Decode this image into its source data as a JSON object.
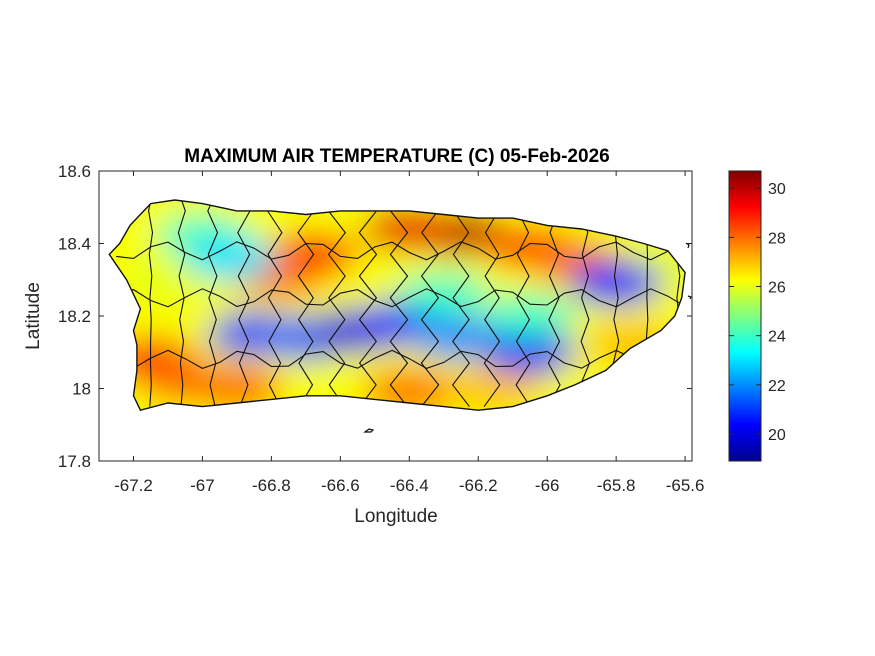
{
  "chart_data": {
    "type": "heatmap",
    "title": "MAXIMUM AIR TEMPERATURE (C) 05-Feb-2026",
    "xlabel": "Longitude",
    "ylabel": "Latitude",
    "xlim": [
      -67.3,
      -65.58
    ],
    "ylim": [
      17.8,
      18.6
    ],
    "xticks": [
      -67.2,
      -67,
      -66.8,
      -66.6,
      -66.4,
      -66.2,
      -66,
      -65.8,
      -65.6
    ],
    "xtick_labels": [
      "-67.2",
      "-67",
      "-66.8",
      "-66.6",
      "-66.4",
      "-66.2",
      "-66",
      "-65.8",
      "-65.6"
    ],
    "yticks": [
      17.8,
      18,
      18.2,
      18.4,
      18.6
    ],
    "ytick_labels": [
      "17.8",
      "18",
      "18.2",
      "18.4",
      "18.6"
    ],
    "colorbar": {
      "range": [
        18.9,
        30.7
      ],
      "ticks": [
        20,
        22,
        24,
        26,
        28,
        30
      ],
      "tick_labels": [
        "20",
        "22",
        "24",
        "26",
        "28",
        "30"
      ],
      "colormap": "jet"
    },
    "grid": false,
    "island_outline": [
      [
        -67.27,
        18.37
      ],
      [
        -67.24,
        18.4
      ],
      [
        -67.21,
        18.45
      ],
      [
        -67.17,
        18.49
      ],
      [
        -67.15,
        18.51
      ],
      [
        -67.08,
        18.52
      ],
      [
        -67.0,
        18.51
      ],
      [
        -66.9,
        18.49
      ],
      [
        -66.8,
        18.49
      ],
      [
        -66.7,
        18.48
      ],
      [
        -66.6,
        18.49
      ],
      [
        -66.5,
        18.49
      ],
      [
        -66.4,
        18.49
      ],
      [
        -66.3,
        18.48
      ],
      [
        -66.2,
        18.47
      ],
      [
        -66.1,
        18.47
      ],
      [
        -66.0,
        18.45
      ],
      [
        -65.9,
        18.44
      ],
      [
        -65.8,
        18.42
      ],
      [
        -65.72,
        18.4
      ],
      [
        -65.65,
        18.38
      ],
      [
        -65.6,
        18.32
      ],
      [
        -65.61,
        18.25
      ],
      [
        -65.63,
        18.2
      ],
      [
        -65.67,
        18.16
      ],
      [
        -65.76,
        18.11
      ],
      [
        -65.83,
        18.05
      ],
      [
        -65.92,
        18.01
      ],
      [
        -66.0,
        17.98
      ],
      [
        -66.1,
        17.95
      ],
      [
        -66.2,
        17.94
      ],
      [
        -66.3,
        17.95
      ],
      [
        -66.4,
        17.96
      ],
      [
        -66.5,
        17.97
      ],
      [
        -66.6,
        17.98
      ],
      [
        -66.7,
        17.98
      ],
      [
        -66.8,
        17.97
      ],
      [
        -66.9,
        17.96
      ],
      [
        -67.0,
        17.95
      ],
      [
        -67.1,
        17.96
      ],
      [
        -67.18,
        17.94
      ],
      [
        -67.2,
        17.98
      ],
      [
        -67.19,
        18.05
      ],
      [
        -67.19,
        18.12
      ],
      [
        -67.2,
        18.16
      ],
      [
        -67.18,
        18.22
      ],
      [
        -67.22,
        18.3
      ],
      [
        -67.27,
        18.37
      ]
    ],
    "temperature_centers": [
      {
        "lon": -66.25,
        "lat": 18.43,
        "value": 30
      },
      {
        "lon": -66.4,
        "lat": 18.44,
        "value": 29.5
      },
      {
        "lon": -66.05,
        "lat": 18.39,
        "value": 28.5
      },
      {
        "lon": -65.92,
        "lat": 18.35,
        "value": 28
      },
      {
        "lon": -66.68,
        "lat": 18.37,
        "value": 29
      },
      {
        "lon": -66.78,
        "lat": 18.31,
        "value": 28
      },
      {
        "lon": -67.15,
        "lat": 18.08,
        "value": 29
      },
      {
        "lon": -67.05,
        "lat": 18.02,
        "value": 28
      },
      {
        "lon": -66.9,
        "lat": 18.0,
        "value": 28
      },
      {
        "lon": -66.4,
        "lat": 17.99,
        "value": 28
      },
      {
        "lon": -66.15,
        "lat": 18.0,
        "value": 27
      },
      {
        "lon": -65.75,
        "lat": 18.12,
        "value": 27
      },
      {
        "lon": -65.68,
        "lat": 18.33,
        "value": 26
      },
      {
        "lon": -67.1,
        "lat": 18.3,
        "value": 26
      },
      {
        "lon": -67.0,
        "lat": 18.42,
        "value": 24
      },
      {
        "lon": -66.92,
        "lat": 18.36,
        "value": 23
      },
      {
        "lon": -66.85,
        "lat": 18.15,
        "value": 21
      },
      {
        "lon": -66.7,
        "lat": 18.14,
        "value": 21.5
      },
      {
        "lon": -66.55,
        "lat": 18.16,
        "value": 20
      },
      {
        "lon": -66.42,
        "lat": 18.18,
        "value": 20.5
      },
      {
        "lon": -66.25,
        "lat": 18.14,
        "value": 22
      },
      {
        "lon": -66.05,
        "lat": 18.1,
        "value": 20.5
      },
      {
        "lon": -65.8,
        "lat": 18.29,
        "value": 20.5
      },
      {
        "lon": -66.05,
        "lat": 18.2,
        "value": 24
      },
      {
        "lon": -66.3,
        "lat": 18.26,
        "value": 24
      }
    ]
  }
}
